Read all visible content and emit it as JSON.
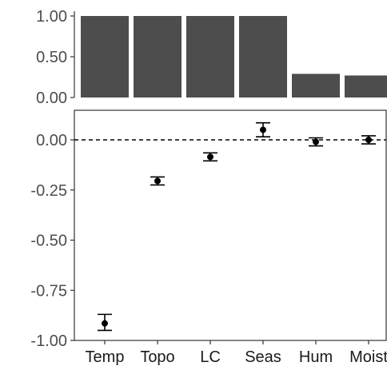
{
  "chart_data": [
    {
      "type": "bar",
      "categories": [
        "Temp",
        "Topo",
        "LC",
        "Seas",
        "Hum",
        "Moist"
      ],
      "values": [
        1.0,
        1.0,
        1.0,
        1.0,
        0.29,
        0.27
      ],
      "ylim": [
        0,
        1.0
      ],
      "yticks": [
        0.0,
        0.5,
        1.0
      ],
      "ytick_labels": [
        "0.00",
        "0.50",
        "1.00"
      ],
      "grid": false,
      "bar_color": "#4d4d4d"
    },
    {
      "type": "scatter",
      "subtype": "point-with-errorbars",
      "categories": [
        "Temp",
        "Topo",
        "LC",
        "Seas",
        "Hum",
        "Moist"
      ],
      "values": [
        -0.915,
        -0.205,
        -0.085,
        0.05,
        -0.01,
        0.0
      ],
      "lower": [
        -0.95,
        -0.225,
        -0.105,
        0.015,
        -0.03,
        -0.02
      ],
      "upper": [
        -0.87,
        -0.185,
        -0.065,
        0.085,
        0.01,
        0.02
      ],
      "ylim": [
        -1.0,
        0.1
      ],
      "yticks": [
        0.0,
        -0.25,
        -0.5,
        -0.75,
        -1.0
      ],
      "ytick_labels": [
        "0.00",
        "-0.25",
        "-0.50",
        "-0.75",
        "-1.00"
      ],
      "reference_line": 0.0,
      "grid": false,
      "point_color": "#000000"
    }
  ]
}
